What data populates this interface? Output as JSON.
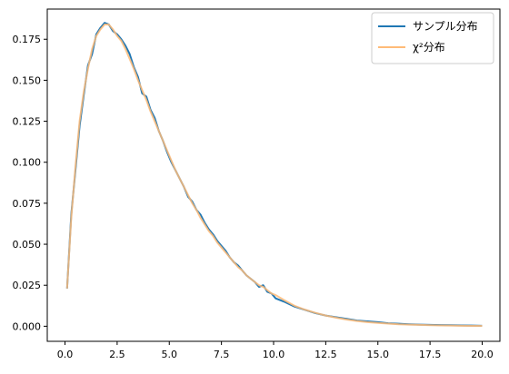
{
  "chart_data": {
    "type": "line",
    "xlim": [
      -0.85,
      20.85
    ],
    "ylim": [
      -0.0092,
      0.1934
    ],
    "xticks": [
      0.0,
      2.5,
      5.0,
      7.5,
      10.0,
      12.5,
      15.0,
      17.5,
      20.0
    ],
    "xtick_labels": [
      "0.0",
      "2.5",
      "5.0",
      "7.5",
      "10.0",
      "12.5",
      "15.0",
      "17.5",
      "20.0"
    ],
    "yticks": [
      0.0,
      0.025,
      0.05,
      0.075,
      0.1,
      0.125,
      0.15,
      0.175
    ],
    "ytick_labels": [
      "0.000",
      "0.025",
      "0.050",
      "0.075",
      "0.100",
      "0.125",
      "0.150",
      "0.175"
    ],
    "grid": false,
    "legend_position": "top-right",
    "legend_labels": [
      "サンプル分布",
      "χ²分布"
    ],
    "series": [
      {
        "name": "サンプル分布",
        "color": "#1f77b4",
        "x": [
          0.1,
          0.3,
          0.5,
          0.7,
          0.9,
          1.1,
          1.3,
          1.5,
          1.7,
          1.9,
          2.1,
          2.3,
          2.5,
          2.7,
          2.9,
          3.1,
          3.3,
          3.5,
          3.7,
          3.9,
          4.1,
          4.3,
          4.5,
          4.7,
          4.9,
          5.1,
          5.3,
          5.5,
          5.7,
          5.9,
          6.1,
          6.3,
          6.5,
          6.7,
          6.9,
          7.1,
          7.3,
          7.5,
          7.7,
          7.9,
          8.1,
          8.3,
          8.5,
          8.7,
          8.9,
          9.1,
          9.3,
          9.5,
          9.7,
          9.9,
          10.1,
          10.5,
          11.0,
          11.5,
          12.0,
          12.5,
          13.0,
          13.5,
          14.0,
          14.5,
          15.0,
          15.5,
          16.0,
          16.5,
          17.0,
          17.5,
          18.0,
          18.5,
          19.0,
          19.5,
          20.0
        ],
        "y": [
          0.023,
          0.068,
          0.095,
          0.122,
          0.141,
          0.159,
          0.166,
          0.178,
          0.182,
          0.185,
          0.184,
          0.18,
          0.178,
          0.175,
          0.171,
          0.166,
          0.158,
          0.152,
          0.142,
          0.14,
          0.132,
          0.127,
          0.119,
          0.113,
          0.106,
          0.1,
          0.095,
          0.09,
          0.085,
          0.079,
          0.076,
          0.071,
          0.068,
          0.063,
          0.059,
          0.056,
          0.052,
          0.049,
          0.046,
          0.042,
          0.039,
          0.037,
          0.034,
          0.031,
          0.029,
          0.027,
          0.024,
          0.025,
          0.021,
          0.02,
          0.017,
          0.015,
          0.012,
          0.01,
          0.008,
          0.0065,
          0.0055,
          0.0045,
          0.0035,
          0.003,
          0.0025,
          0.0018,
          0.0015,
          0.0012,
          0.001,
          0.0008,
          0.0007,
          0.0006,
          0.0005,
          0.0004,
          0.0003
        ]
      },
      {
        "name": "χ²分布",
        "color": "#ffbb78",
        "x": [
          0.1,
          0.3,
          0.5,
          0.7,
          0.9,
          1.1,
          1.3,
          1.5,
          1.7,
          1.9,
          2.1,
          2.3,
          2.5,
          2.7,
          2.9,
          3.1,
          3.3,
          3.5,
          3.7,
          3.9,
          4.1,
          4.3,
          4.5,
          4.7,
          4.9,
          5.1,
          5.3,
          5.5,
          5.7,
          5.9,
          6.1,
          6.3,
          6.5,
          6.7,
          6.9,
          7.1,
          7.3,
          7.5,
          7.7,
          7.9,
          8.1,
          8.3,
          8.5,
          8.7,
          8.9,
          9.1,
          9.3,
          9.5,
          9.7,
          9.9,
          10.1,
          10.5,
          11.0,
          11.5,
          12.0,
          12.5,
          13.0,
          13.5,
          14.0,
          14.5,
          15.0,
          15.5,
          16.0,
          16.5,
          17.0,
          17.5,
          18.0,
          18.5,
          19.0,
          19.5,
          20.0
        ],
        "y": [
          0.023,
          0.066,
          0.097,
          0.125,
          0.143,
          0.157,
          0.169,
          0.177,
          0.181,
          0.184,
          0.184,
          0.181,
          0.177,
          0.174,
          0.169,
          0.163,
          0.157,
          0.15,
          0.144,
          0.138,
          0.131,
          0.125,
          0.119,
          0.113,
          0.107,
          0.101,
          0.095,
          0.09,
          0.085,
          0.08,
          0.075,
          0.071,
          0.066,
          0.062,
          0.058,
          0.055,
          0.051,
          0.048,
          0.045,
          0.042,
          0.039,
          0.036,
          0.034,
          0.031,
          0.029,
          0.027,
          0.025,
          0.024,
          0.022,
          0.02,
          0.019,
          0.016,
          0.0125,
          0.0101,
          0.0082,
          0.0065,
          0.0052,
          0.0041,
          0.0032,
          0.0025,
          0.002,
          0.0016,
          0.0012,
          0.001,
          0.0008,
          0.0006,
          0.0005,
          0.0004,
          0.0003,
          0.0002,
          0.0002
        ]
      }
    ]
  }
}
